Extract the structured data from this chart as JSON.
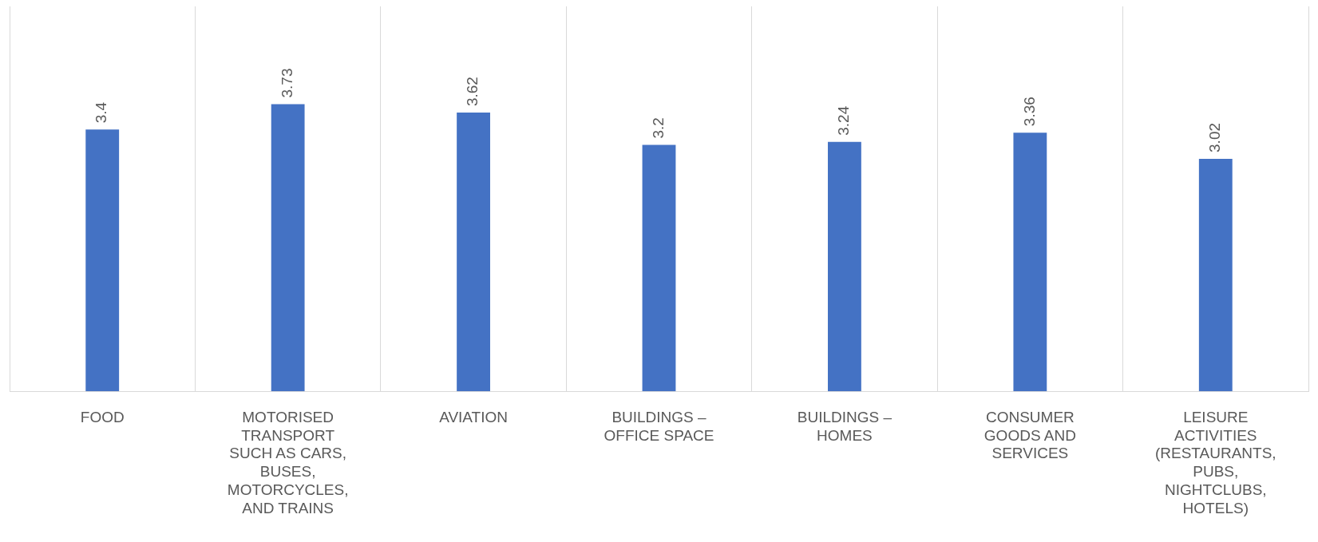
{
  "chart_data": {
    "type": "bar",
    "categories": [
      "FOOD",
      "MOTORISED TRANSPORT SUCH AS CARS, BUSES, MOTORCYCLES, AND TRAINS",
      "AVIATION",
      "BUILDINGS – OFFICE SPACE",
      "BUILDINGS – HOMES",
      "CONSUMER GOODS AND SERVICES",
      "LEISURE ACTIVITIES (RESTAURANTS, PUBS, NIGHTCLUBS, HOTELS)"
    ],
    "values": [
      3.4,
      3.73,
      3.62,
      3.2,
      3.24,
      3.36,
      3.02
    ],
    "color": "#4472c4",
    "ylim": [
      0,
      5
    ],
    "data_labels": true,
    "grid": "x",
    "legend": false,
    "tick_labels": "x"
  }
}
